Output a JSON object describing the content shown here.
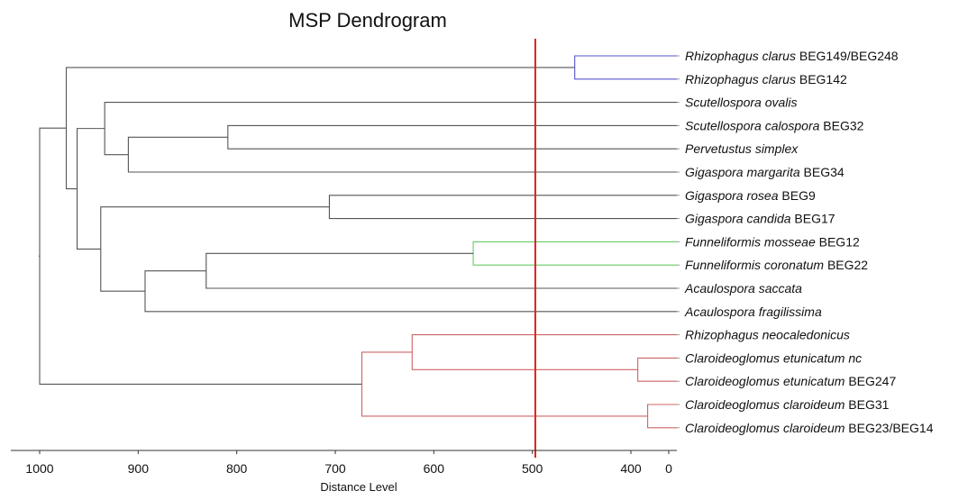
{
  "chart_data": {
    "type": "dendrogram",
    "title": "MSP Dendrogram",
    "xlabel": "Distance Level",
    "x_axis": {
      "direction": "reversed",
      "ticks": [
        1000,
        900,
        800,
        700,
        600,
        500,
        400,
        0
      ],
      "tick_labels": [
        "1000",
        "900",
        "800",
        "700",
        "600",
        "500",
        "400",
        "0"
      ]
    },
    "cutoff": {
      "value": 497,
      "color": "#e02020"
    },
    "colors": {
      "default": "#555555",
      "blue": "#5555cc",
      "green": "#66cc66",
      "red": "#cc6666"
    },
    "leaves": [
      {
        "name": "Rhizophagus clarus",
        "suffix": " BEG149/BEG248"
      },
      {
        "name": "Rhizophagus clarus",
        "suffix": " BEG142"
      },
      {
        "name": "Scutellospora ovalis",
        "suffix": ""
      },
      {
        "name": "Scutellospora calospora",
        "suffix": " BEG32"
      },
      {
        "name": "Pervetustus simplex",
        "suffix": ""
      },
      {
        "name": "Gigaspora margarita",
        "suffix": " BEG34"
      },
      {
        "name": "Gigaspora rosea",
        "suffix": " BEG9"
      },
      {
        "name": "Gigaspora candida",
        "suffix": " BEG17"
      },
      {
        "name": "Funneliformis mosseae",
        "suffix": " BEG12"
      },
      {
        "name": "Funneliformis coronatum",
        "suffix": " BEG22"
      },
      {
        "name": "Acaulospora saccata",
        "suffix": ""
      },
      {
        "name": "Acaulospora fragilissima",
        "suffix": ""
      },
      {
        "name": "Rhizophagus neocaledonicus",
        "suffix": ""
      },
      {
        "name": "Claroideoglomus etunicatum nc",
        "suffix": ""
      },
      {
        "name": "Claroideoglomus etunicatum",
        "suffix": " BEG247"
      },
      {
        "name": "Claroideoglomus claroideum",
        "suffix": " BEG31"
      },
      {
        "name": "Claroideoglomus claroideum",
        "suffix": " BEG23/BEG14"
      }
    ],
    "merges": [
      {
        "id": "m1",
        "left": "L0",
        "right": "L1",
        "distance": 457,
        "color": "blue"
      },
      {
        "id": "m2",
        "left": "L8",
        "right": "L9",
        "distance": 560,
        "color": "green"
      },
      {
        "id": "m3",
        "left": "L15",
        "right": "L16",
        "distance": 383,
        "color": "red"
      },
      {
        "id": "m4",
        "left": "L13",
        "right": "L14",
        "distance": 393,
        "color": "red"
      },
      {
        "id": "m5",
        "left": "L12",
        "right": "m4",
        "distance": 622,
        "color": "red"
      },
      {
        "id": "m6",
        "left": "m5",
        "right": "m3",
        "distance": 673,
        "color": "red"
      },
      {
        "id": "m7",
        "left": "L6",
        "right": "L7",
        "distance": 706,
        "color": "default"
      },
      {
        "id": "m8",
        "left": "L3",
        "right": "L4",
        "distance": 809,
        "color": "default"
      },
      {
        "id": "m9",
        "left": "m2",
        "right": "L10",
        "distance": 831,
        "color": "default"
      },
      {
        "id": "m10",
        "left": "m9",
        "right": "L11",
        "distance": 893,
        "color": "default"
      },
      {
        "id": "m11",
        "left": "m8",
        "right": "L5",
        "distance": 910,
        "color": "default"
      },
      {
        "id": "m12",
        "left": "L2",
        "right": "m11",
        "distance": 934,
        "color": "default"
      },
      {
        "id": "m13",
        "left": "m7",
        "right": "m10",
        "distance": 938,
        "color": "default"
      },
      {
        "id": "m14",
        "left": "m12",
        "right": "m13",
        "distance": 962,
        "color": "default"
      },
      {
        "id": "m15",
        "left": "m1",
        "right": "m14",
        "distance": 973,
        "color": "default"
      },
      {
        "id": "m16",
        "left": "m15",
        "right": "m6",
        "distance": 1000,
        "color": "default"
      }
    ]
  }
}
